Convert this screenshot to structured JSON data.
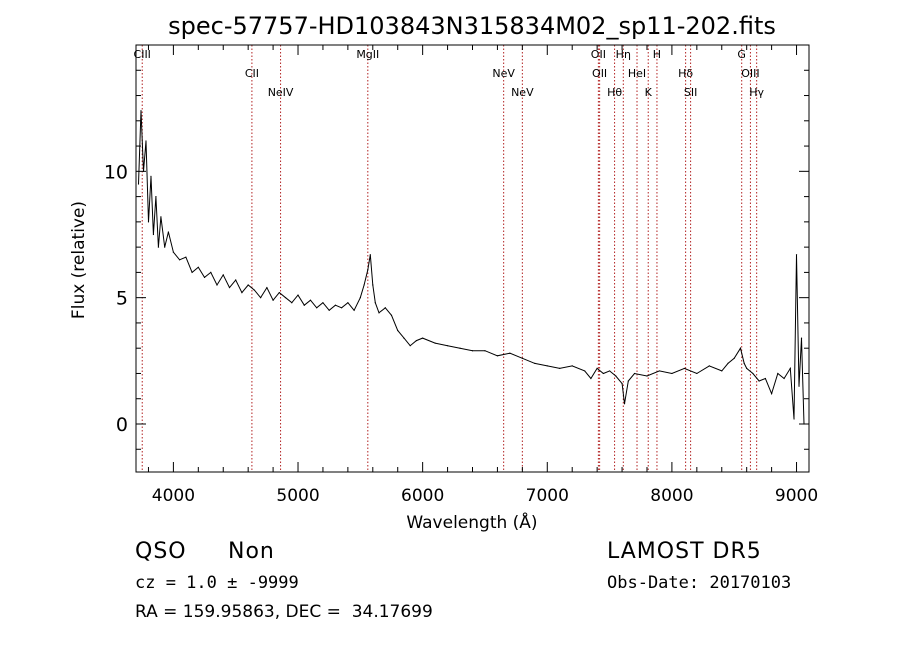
{
  "chart_data": {
    "type": "line",
    "title": "spec-57757-HD103843N315834M02_sp11-202.fits",
    "xlabel": "Wavelength (Å)",
    "ylabel": "Flux (relative)",
    "xlim": [
      3700,
      9100
    ],
    "ylim": [
      -1.9,
      15
    ],
    "x_ticks": [
      4000,
      5000,
      6000,
      7000,
      8000,
      9000
    ],
    "x_tick_labels": [
      "4000",
      "5000",
      "6000",
      "7000",
      "8000",
      "9000"
    ],
    "y_ticks": [
      0,
      5,
      10
    ],
    "y_tick_labels": [
      "0",
      "5",
      "10"
    ],
    "grid": false,
    "series": [
      {
        "color": "#000000",
        "x": [
          3720,
          3740,
          3760,
          3780,
          3800,
          3820,
          3840,
          3860,
          3880,
          3900,
          3930,
          3960,
          4000,
          4050,
          4100,
          4150,
          4200,
          4250,
          4300,
          4350,
          4400,
          4450,
          4500,
          4550,
          4600,
          4650,
          4700,
          4750,
          4800,
          4850,
          4900,
          4950,
          5000,
          5050,
          5100,
          5150,
          5200,
          5250,
          5300,
          5350,
          5400,
          5450,
          5500,
          5530,
          5560,
          5580,
          5600,
          5620,
          5650,
          5700,
          5750,
          5800,
          5850,
          5900,
          5950,
          6000,
          6100,
          6200,
          6300,
          6400,
          6500,
          6600,
          6700,
          6800,
          6900,
          7000,
          7100,
          7200,
          7300,
          7350,
          7400,
          7450,
          7500,
          7550,
          7600,
          7620,
          7650,
          7700,
          7800,
          7900,
          8000,
          8100,
          8200,
          8300,
          8400,
          8450,
          8500,
          8550,
          8580,
          8600,
          8650,
          8700,
          8750,
          8800,
          8850,
          8900,
          8950,
          8980,
          9000,
          9020,
          9040,
          9060
        ],
        "y": [
          9.5,
          12.4,
          10.0,
          11.2,
          8.0,
          9.8,
          7.5,
          9.0,
          7.0,
          8.2,
          7.0,
          7.6,
          6.8,
          6.5,
          6.6,
          6.0,
          6.2,
          5.8,
          6.0,
          5.5,
          5.9,
          5.4,
          5.7,
          5.2,
          5.5,
          5.3,
          5.0,
          5.4,
          4.9,
          5.2,
          5.0,
          4.8,
          5.1,
          4.7,
          4.9,
          4.6,
          4.8,
          4.5,
          4.7,
          4.6,
          4.8,
          4.5,
          5.0,
          5.5,
          6.1,
          6.7,
          5.5,
          4.8,
          4.4,
          4.6,
          4.3,
          3.7,
          3.4,
          3.1,
          3.3,
          3.4,
          3.2,
          3.1,
          3.0,
          2.9,
          2.9,
          2.7,
          2.8,
          2.6,
          2.4,
          2.3,
          2.2,
          2.3,
          2.1,
          1.8,
          2.2,
          2.0,
          2.1,
          1.9,
          1.6,
          0.8,
          1.7,
          2.0,
          1.9,
          2.1,
          2.0,
          2.2,
          2.0,
          2.3,
          2.1,
          2.4,
          2.6,
          3.0,
          2.4,
          2.2,
          2.0,
          1.7,
          1.8,
          1.2,
          2.0,
          1.8,
          2.2,
          0.2,
          6.7,
          1.5,
          3.4,
          0.0
        ]
      }
    ],
    "lines": [
      {
        "label": "CIII",
        "x": 3750
      },
      {
        "label": "CII",
        "x": 4630
      },
      {
        "label": "NeIV",
        "x": 4860
      },
      {
        "label": "MgII",
        "x": 5560
      },
      {
        "label": "NeV",
        "x": 6650
      },
      {
        "label": "NeV",
        "x": 6800
      },
      {
        "label": "OII",
        "x": 7410
      },
      {
        "label": "OII",
        "x": 7420
      },
      {
        "label": "Hθ",
        "x": 7540
      },
      {
        "label": "Hη",
        "x": 7610
      },
      {
        "label": "HeI",
        "x": 7720
      },
      {
        "label": "K",
        "x": 7810
      },
      {
        "label": "H",
        "x": 7880
      },
      {
        "label": "Hδ",
        "x": 8110
      },
      {
        "label": "SII",
        "x": 8150
      },
      {
        "label": "G",
        "x": 8560
      },
      {
        "label": "OIII",
        "x": 8630
      },
      {
        "label": "Hγ",
        "x": 8680
      }
    ]
  },
  "info": {
    "class_label": "QSO",
    "subclass_label": "Non",
    "survey_label": "LAMOST DR5",
    "cz_text": "cz = 1.0 ± -9999",
    "obs_date_text": "Obs-Date: 20170103",
    "radec_text": "RA = 159.95863, DEC =  34.17699"
  }
}
